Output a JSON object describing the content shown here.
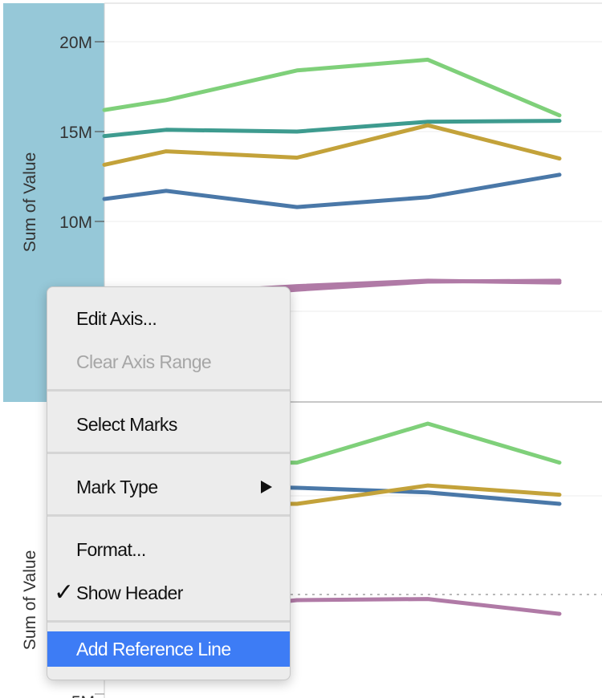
{
  "chart_data": [
    {
      "type": "line",
      "ylabel": "Sum of Value",
      "yticks": [
        "20M",
        "15M",
        "10M"
      ],
      "yticks_values": [
        20000000,
        15000000,
        10000000
      ],
      "x": [
        1,
        2,
        3,
        4,
        5,
        6
      ],
      "series": [
        {
          "color": "#7fd07a",
          "values": [
            16200000,
            16750000,
            18400000,
            19000000,
            15900000,
            null
          ]
        },
        {
          "color": "#3e9b8f",
          "values": [
            14750000,
            15100000,
            15000000,
            15550000,
            15600000,
            null
          ]
        },
        {
          "color": "#c3a23a",
          "values": [
            13150000,
            13900000,
            13550000,
            15350000,
            13500000,
            null
          ]
        },
        {
          "color": "#4a78a8",
          "values": [
            11250000,
            11700000,
            10800000,
            11350000,
            12600000,
            null
          ]
        },
        {
          "color": "#b07aa6",
          "values": [
            null,
            5950000,
            6400000,
            6700000,
            6600000,
            null
          ]
        },
        {
          "color": "#b07aa6",
          "values": [
            null,
            5650000,
            6200000,
            6650000,
            6700000,
            null
          ]
        }
      ]
    },
    {
      "type": "line",
      "ylabel": "Sum of Value",
      "yticks": [
        "5M"
      ],
      "series": [
        {
          "color": "#7fd07a",
          "values": [
            null,
            17600000,
            17600000,
            19300000,
            17600000
          ]
        },
        {
          "color": "#4a78a8",
          "values": [
            null,
            16600000,
            16500000,
            16300000,
            15800000
          ]
        },
        {
          "color": "#c3a23a",
          "values": [
            null,
            15800000,
            15800000,
            16600000,
            16200000
          ]
        },
        {
          "color": "#b07aa6",
          "values": [
            null,
            11000000,
            11600000,
            11650000,
            11000000
          ]
        },
        {
          "color": "#b07aa6",
          "values": [
            null,
            5950000,
            5900000,
            6350000,
            6500000
          ]
        }
      ]
    }
  ],
  "context_menu": {
    "edit_axis": "Edit Axis...",
    "clear_axis_range": "Clear Axis Range",
    "select_marks": "Select Marks",
    "mark_type": "Mark Type",
    "format": "Format...",
    "check_glyph": "✓",
    "show_header": "Show Header",
    "add_reference_line": "Add Reference Line"
  },
  "colors": {
    "axis_highlight": "#96c8d8",
    "menu_highlight": "#3d7cf5"
  }
}
